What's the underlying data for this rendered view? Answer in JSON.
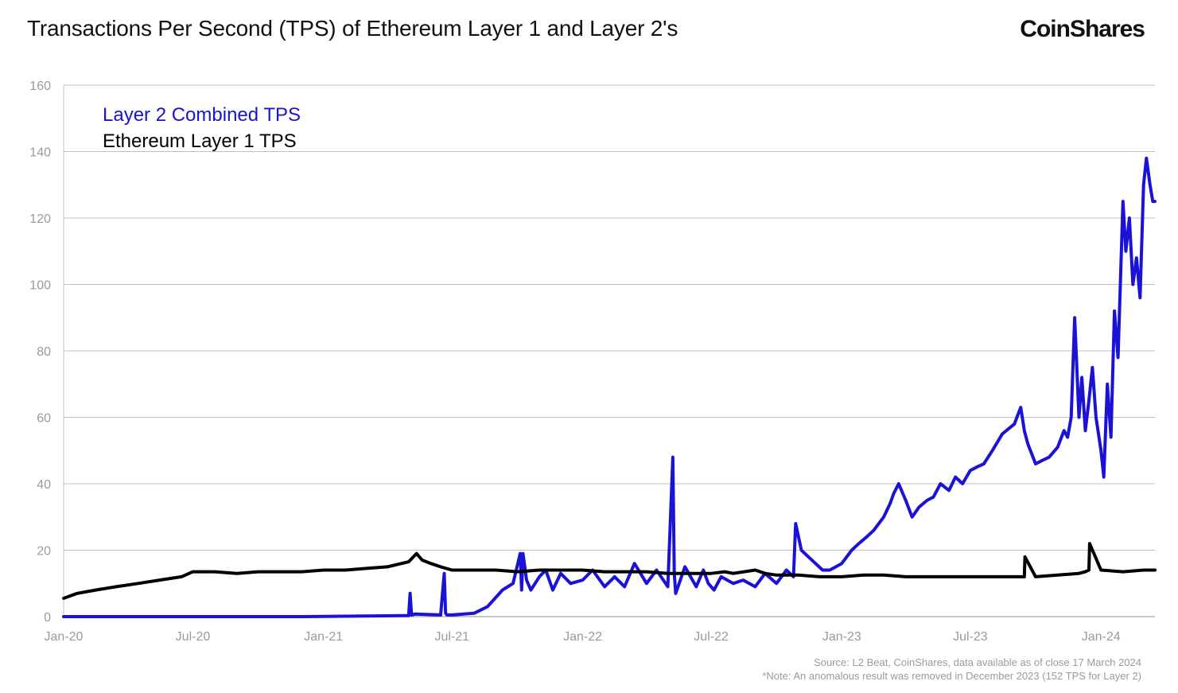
{
  "header": {
    "title": "Transactions Per Second (TPS) of Ethereum Layer 1 and Layer 2's",
    "brand": "CoinShares"
  },
  "footer": {
    "source": "Source: L2 Beat, CoinShares, data available as of close 17 March 2024",
    "note": "*Note: An anomalous result was removed in December 2023 (152 TPS for Layer 2)"
  },
  "colors": {
    "layer2": "#1a12d4",
    "layer1": "#000000",
    "grid": "#bfbfbf"
  },
  "chart_data": {
    "type": "line",
    "title": "Transactions Per Second (TPS) of Ethereum Layer 1 and Layer 2's",
    "xlabel": "",
    "ylabel": "",
    "xlim": [
      "2020-01-01",
      "2024-03-17"
    ],
    "ylim": [
      0,
      160
    ],
    "yticks": [
      0,
      20,
      40,
      60,
      80,
      100,
      120,
      140,
      160
    ],
    "xticks": [
      "Jan-20",
      "Jul-20",
      "Jan-21",
      "Jul-21",
      "Jan-22",
      "Jul-22",
      "Jan-23",
      "Jul-23",
      "Jan-24"
    ],
    "xtick_dates": [
      "2020-01-01",
      "2020-07-01",
      "2021-01-01",
      "2021-07-01",
      "2022-01-01",
      "2022-07-01",
      "2023-01-01",
      "2023-07-01",
      "2024-01-01"
    ],
    "grid": "horizontal",
    "legend": "top-left",
    "series": [
      {
        "name": "Layer 2 Combined TPS",
        "x": [
          "2020-01-01",
          "2020-06-01",
          "2020-12-01",
          "2021-05-01",
          "2021-05-03",
          "2021-05-05",
          "2021-05-10",
          "2021-06-15",
          "2021-06-20",
          "2021-06-22",
          "2021-06-24",
          "2021-07-01",
          "2021-08-01",
          "2021-08-20",
          "2021-09-10",
          "2021-09-25",
          "2021-10-05",
          "2021-10-07",
          "2021-10-09",
          "2021-10-14",
          "2021-10-20",
          "2021-11-01",
          "2021-11-10",
          "2021-11-20",
          "2021-12-01",
          "2021-12-15",
          "2022-01-01",
          "2022-01-15",
          "2022-02-01",
          "2022-02-15",
          "2022-03-01",
          "2022-03-15",
          "2022-04-01",
          "2022-04-15",
          "2022-05-01",
          "2022-05-08",
          "2022-05-10",
          "2022-05-12",
          "2022-05-25",
          "2022-06-10",
          "2022-06-20",
          "2022-06-27",
          "2022-07-05",
          "2022-07-15",
          "2022-08-01",
          "2022-08-15",
          "2022-09-01",
          "2022-09-15",
          "2022-10-01",
          "2022-10-15",
          "2022-10-25",
          "2022-10-28",
          "2022-11-05",
          "2022-11-15",
          "2022-11-25",
          "2022-12-05",
          "2022-12-15",
          "2023-01-01",
          "2023-01-15",
          "2023-01-25",
          "2023-02-05",
          "2023-02-15",
          "2023-03-01",
          "2023-03-10",
          "2023-03-15",
          "2023-03-22",
          "2023-04-01",
          "2023-04-10",
          "2023-04-20",
          "2023-05-01",
          "2023-05-10",
          "2023-05-20",
          "2023-06-01",
          "2023-06-10",
          "2023-06-20",
          "2023-07-01",
          "2023-07-10",
          "2023-07-20",
          "2023-08-01",
          "2023-08-15",
          "2023-09-01",
          "2023-09-10",
          "2023-09-15",
          "2023-09-20",
          "2023-10-01",
          "2023-10-10",
          "2023-10-20",
          "2023-11-01",
          "2023-11-10",
          "2023-11-15",
          "2023-11-20",
          "2023-11-25",
          "2023-12-01",
          "2023-12-05",
          "2023-12-10",
          "2023-12-15",
          "2023-12-20",
          "2023-12-25",
          "2024-01-01",
          "2024-01-05",
          "2024-01-10",
          "2024-01-15",
          "2024-01-20",
          "2024-01-25",
          "2024-02-01",
          "2024-02-05",
          "2024-02-10",
          "2024-02-15",
          "2024-02-20",
          "2024-02-25",
          "2024-03-01",
          "2024-03-05",
          "2024-03-10",
          "2024-03-14",
          "2024-03-17"
        ],
        "values": [
          0,
          0,
          0,
          0.3,
          7,
          0.5,
          0.8,
          0.5,
          13,
          1,
          0.5,
          0.5,
          1,
          3,
          8,
          10,
          19,
          8,
          19,
          11,
          8,
          12,
          14,
          8,
          13,
          10,
          11,
          14,
          9,
          12,
          9,
          16,
          10,
          14,
          9,
          48,
          13,
          7,
          15,
          9,
          14,
          10,
          8,
          12,
          10,
          11,
          9,
          13,
          10,
          14,
          12,
          28,
          20,
          18,
          16,
          14,
          14,
          16,
          20,
          22,
          24,
          26,
          30,
          34,
          37,
          40,
          35,
          30,
          33,
          35,
          36,
          40,
          38,
          42,
          40,
          44,
          45,
          46,
          50,
          55,
          58,
          63,
          56,
          52,
          46,
          47,
          48,
          51,
          56,
          54,
          60,
          90,
          60,
          72,
          56,
          65,
          75,
          60,
          50,
          42,
          70,
          54,
          92,
          78,
          125,
          110,
          120,
          100,
          108,
          96,
          130,
          138,
          130,
          125,
          125
        ]
      },
      {
        "name": "Ethereum Layer 1 TPS",
        "x": [
          "2020-01-01",
          "2020-01-20",
          "2020-02-15",
          "2020-03-15",
          "2020-04-15",
          "2020-05-15",
          "2020-06-15",
          "2020-07-01",
          "2020-08-01",
          "2020-09-01",
          "2020-10-01",
          "2020-11-01",
          "2020-12-01",
          "2021-01-01",
          "2021-02-01",
          "2021-03-01",
          "2021-04-01",
          "2021-05-01",
          "2021-05-12",
          "2021-05-20",
          "2021-06-01",
          "2021-06-15",
          "2021-07-01",
          "2021-08-01",
          "2021-09-01",
          "2021-10-01",
          "2021-11-01",
          "2021-12-01",
          "2022-01-01",
          "2022-02-01",
          "2022-03-01",
          "2022-04-01",
          "2022-05-01",
          "2022-06-01",
          "2022-07-01",
          "2022-07-20",
          "2022-08-01",
          "2022-09-01",
          "2022-09-15",
          "2022-10-01",
          "2022-11-01",
          "2022-12-01",
          "2023-01-01",
          "2023-02-01",
          "2023-03-01",
          "2023-04-01",
          "2023-05-01",
          "2023-06-01",
          "2023-07-01",
          "2023-08-01",
          "2023-09-01",
          "2023-09-15",
          "2023-09-16",
          "2023-10-01",
          "2023-11-01",
          "2023-12-01",
          "2023-12-10",
          "2023-12-15",
          "2023-12-16",
          "2024-01-01",
          "2024-02-01",
          "2024-03-01",
          "2024-03-17"
        ],
        "values": [
          5.5,
          7,
          8,
          9,
          10,
          11,
          12,
          13.5,
          13.5,
          13,
          13.5,
          13.5,
          13.5,
          14,
          14,
          14.5,
          15,
          16.5,
          19,
          17,
          16,
          15,
          14,
          14,
          14,
          13.5,
          14,
          14,
          14,
          13.5,
          13.5,
          13.5,
          13,
          13,
          13,
          13.5,
          13,
          14,
          13,
          12.5,
          12.5,
          12,
          12,
          12.5,
          12.5,
          12,
          12,
          12,
          12,
          12,
          12,
          12,
          18,
          12,
          12.5,
          13,
          13.5,
          14,
          22,
          14,
          13.5,
          14,
          14
        ]
      }
    ]
  }
}
